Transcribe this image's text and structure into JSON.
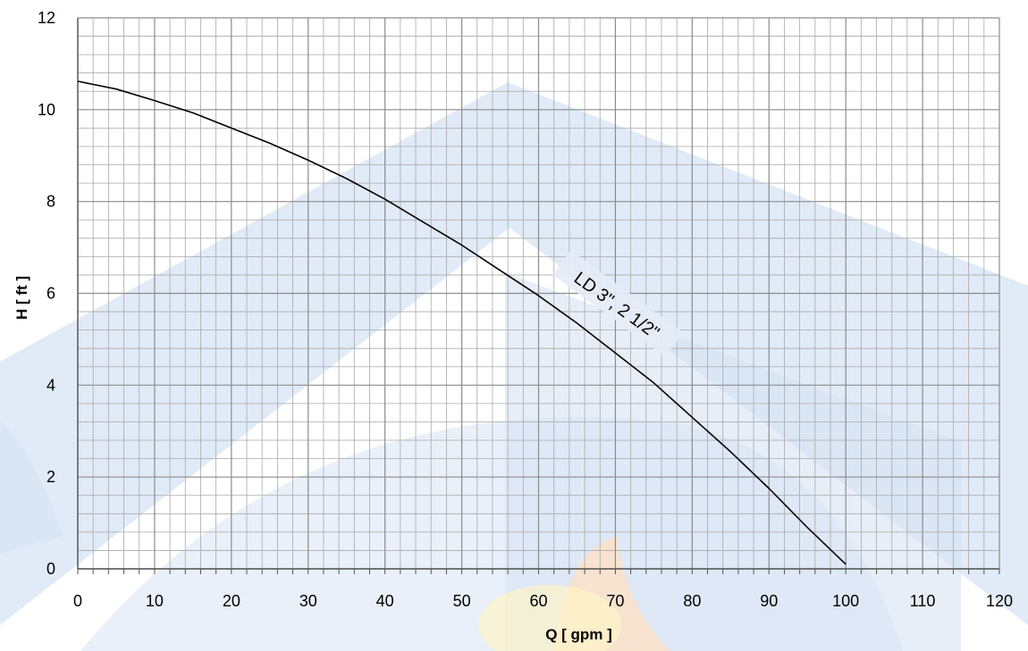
{
  "chart_data": {
    "type": "line",
    "xlabel": "Q [ gpm ]",
    "ylabel": "H [ ft ]",
    "xlim": [
      0,
      120
    ],
    "ylim": [
      0,
      12
    ],
    "x_ticks": [
      "0",
      "10",
      "20",
      "30",
      "40",
      "50",
      "60",
      "70",
      "80",
      "90",
      "100",
      "110",
      "120"
    ],
    "y_ticks": [
      "0",
      "2",
      "4",
      "6",
      "8",
      "10",
      "12"
    ],
    "grid": true,
    "minor_grid_x_step": 2,
    "minor_grid_y_step": 0.4,
    "line_color": "#000000",
    "series": [
      {
        "name": "LD 3\", 2 1/2\"",
        "x": [
          0,
          5,
          10,
          15,
          20,
          25,
          30,
          35,
          40,
          45,
          50,
          55,
          60,
          65,
          70,
          75,
          80,
          85,
          90,
          95,
          100
        ],
        "y": [
          10.62,
          10.45,
          10.2,
          9.93,
          9.6,
          9.27,
          8.9,
          8.5,
          8.05,
          7.55,
          7.05,
          6.5,
          5.95,
          5.35,
          4.7,
          4.05,
          3.3,
          2.55,
          1.75,
          0.9,
          0.1
        ]
      }
    ],
    "annotations": [
      {
        "text": "LD 3\", 2 1/2\"",
        "x": 70,
        "y": 5.7
      }
    ]
  },
  "watermark_colors": {
    "blue": "#d7e3f4",
    "orange": "#fbe2c9",
    "yellow": "#fdf3c8"
  }
}
